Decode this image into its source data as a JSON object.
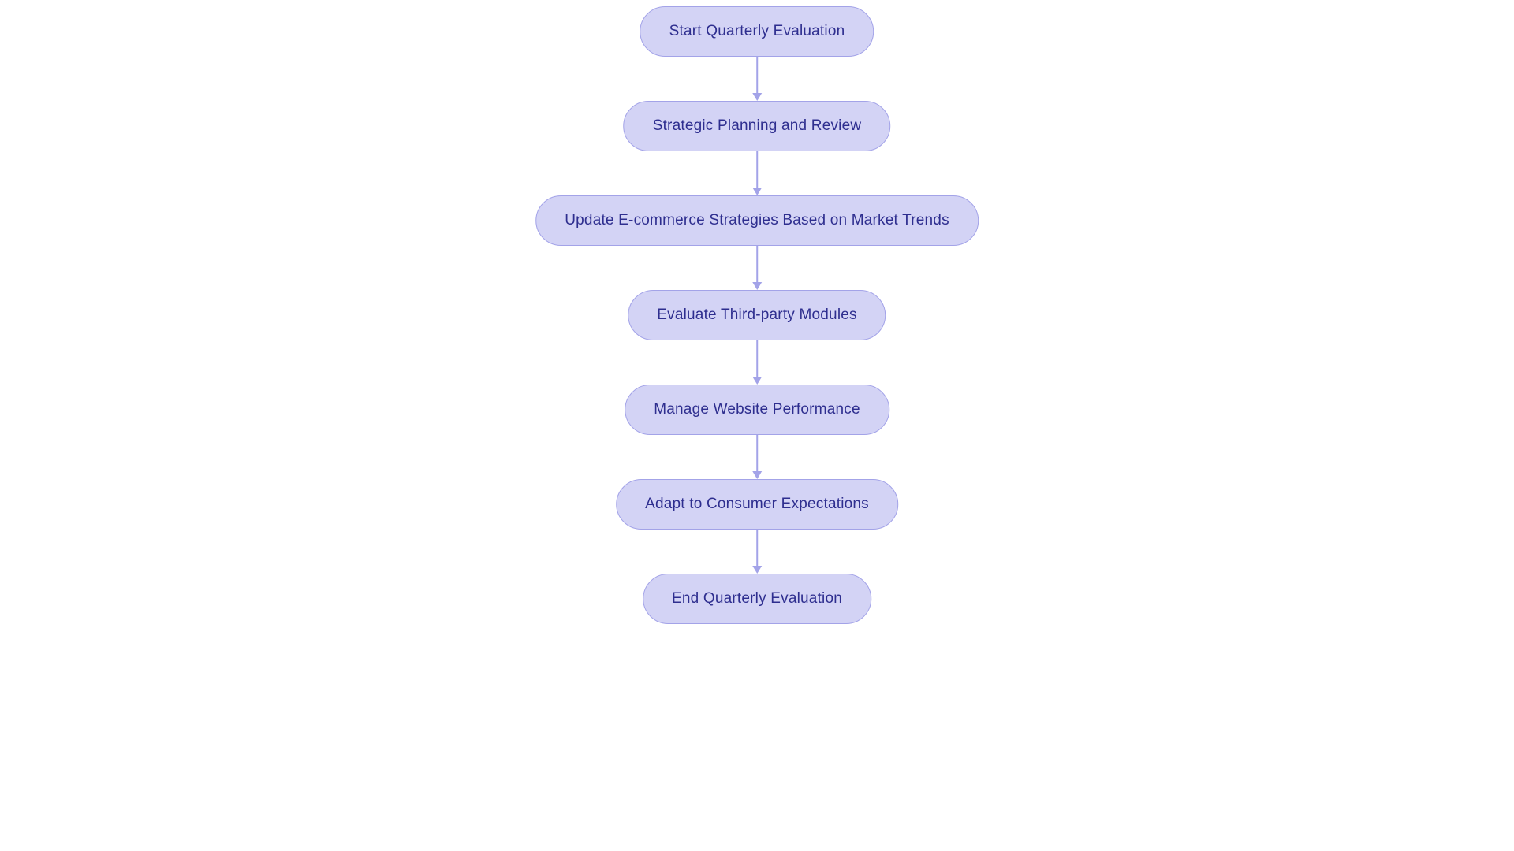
{
  "flowchart": {
    "type": "flowchart",
    "background_color": "#ffffff",
    "node_fill": "#d3d3f5",
    "node_border": "#a3a3e8",
    "node_text_color": "#2e2e8f",
    "node_fontsize": 19,
    "node_border_radius": 34,
    "connector_color": "#a3a3e8",
    "connector_height": 56,
    "arrow_size": 10,
    "nodes": [
      {
        "id": "n1",
        "label": "Start Quarterly Evaluation"
      },
      {
        "id": "n2",
        "label": "Strategic Planning and Review"
      },
      {
        "id": "n3",
        "label": "Update E-commerce Strategies Based on Market Trends"
      },
      {
        "id": "n4",
        "label": "Evaluate Third-party Modules"
      },
      {
        "id": "n5",
        "label": "Manage Website Performance"
      },
      {
        "id": "n6",
        "label": "Adapt to Consumer Expectations"
      },
      {
        "id": "n7",
        "label": "End Quarterly Evaluation"
      }
    ],
    "edges": [
      {
        "from": "n1",
        "to": "n2"
      },
      {
        "from": "n2",
        "to": "n3"
      },
      {
        "from": "n3",
        "to": "n4"
      },
      {
        "from": "n4",
        "to": "n5"
      },
      {
        "from": "n5",
        "to": "n6"
      },
      {
        "from": "n6",
        "to": "n7"
      }
    ]
  }
}
